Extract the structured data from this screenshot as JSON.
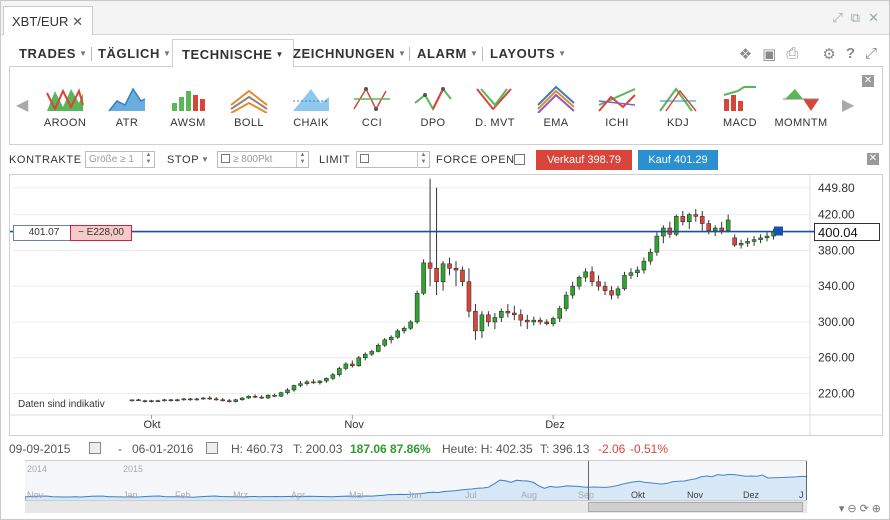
{
  "tab": {
    "title": "XBT/EUR",
    "close": "✕"
  },
  "menu": [
    {
      "label": "TRADES"
    },
    {
      "label": "TÄGLICH"
    },
    {
      "label": "TECHNISCHE"
    },
    {
      "label": "ZEICHNUNGEN"
    },
    {
      "label": "ALARM"
    },
    {
      "label": "LAYOUTS"
    }
  ],
  "indicators": [
    {
      "label": "AROON",
      "icon": "aroon-icon"
    },
    {
      "label": "ATR",
      "icon": "atr-icon"
    },
    {
      "label": "AWSM",
      "icon": "awsm-icon"
    },
    {
      "label": "BOLL",
      "icon": "boll-icon"
    },
    {
      "label": "CHAIK",
      "icon": "chaik-icon"
    },
    {
      "label": "CCI",
      "icon": "cci-icon"
    },
    {
      "label": "DPO",
      "icon": "dpo-icon"
    },
    {
      "label": "D. MVT",
      "icon": "dmvt-icon"
    },
    {
      "label": "EMA",
      "icon": "ema-icon"
    },
    {
      "label": "ICHI",
      "icon": "ichi-icon"
    },
    {
      "label": "KDJ",
      "icon": "kdj-icon"
    },
    {
      "label": "MACD",
      "icon": "macd-icon"
    },
    {
      "label": "MOMNTM",
      "icon": "momntm-icon"
    }
  ],
  "order": {
    "kontrakte_label": "KONTRAKTE",
    "kontrakte_placeholder": "Größe ≥ 1",
    "stop_label": "STOP",
    "stop_placeholder": "≥ 800Pkt",
    "limit_label": "LIMIT",
    "force_open_label": "FORCE OPEN",
    "sell_label": "Verkauf 398.79",
    "buy_label": "Kauf 401.29"
  },
  "chart": {
    "position_price": "401.07",
    "position_pnl": "− E228,00",
    "current_price": "400.04",
    "indicative_note": "Daten sind indikativ"
  },
  "colors": {
    "up": "#2fa52f",
    "down": "#d9453b",
    "position_line": "#1f4f9a",
    "sell": "#d9453b",
    "buy": "#2c8fd0"
  },
  "stats": {
    "date_from": "09-09-2015",
    "dash": "-",
    "date_to": "06-01-2016",
    "high": "H: 460.73",
    "low": "T: 200.03",
    "change": "187.06",
    "change_pct": "87.86%",
    "today_high": "Heute: H: 402.35",
    "today_low": "T: 396.13",
    "today_change": "-2.06",
    "today_change_pct": "-0.51%"
  },
  "navigator": {
    "years": [
      "2014",
      "2015"
    ],
    "months": [
      "Nov",
      "Jan",
      "Feb",
      "Mrz",
      "Apr",
      "Mai",
      "Jun",
      "Jul",
      "Aug",
      "Sep",
      "Okt",
      "Nov",
      "Dez",
      "J"
    ]
  },
  "chart_data": {
    "type": "candlestick",
    "title": "",
    "xlabel": "",
    "ylabel": "",
    "x_ticks": [
      "Okt",
      "Nov",
      "Dez"
    ],
    "y_ticks": [
      449.8,
      420.0,
      380.0,
      340.0,
      300.0,
      260.0,
      220.0
    ],
    "ylim": [
      196,
      462
    ],
    "current_price": 400.04,
    "position_price": 401.07,
    "candles": [
      [
        213,
        213,
        211,
        212
      ],
      [
        213,
        214,
        212,
        213
      ],
      [
        212,
        213,
        210,
        211
      ],
      [
        211,
        213,
        210,
        212
      ],
      [
        212,
        213,
        211,
        212
      ],
      [
        212,
        214,
        211,
        213
      ],
      [
        213,
        214,
        211,
        212
      ],
      [
        212,
        214,
        211,
        213
      ],
      [
        213,
        215,
        212,
        214
      ],
      [
        214,
        215,
        212,
        213
      ],
      [
        213,
        215,
        212,
        214
      ],
      [
        214,
        216,
        213,
        215
      ],
      [
        215,
        217,
        213,
        214
      ],
      [
        214,
        216,
        212,
        213
      ],
      [
        213,
        215,
        211,
        212
      ],
      [
        212,
        214,
        210,
        211
      ],
      [
        211,
        214,
        210,
        213
      ],
      [
        213,
        216,
        212,
        215
      ],
      [
        215,
        218,
        214,
        217
      ],
      [
        217,
        219,
        215,
        216
      ],
      [
        216,
        218,
        214,
        215
      ],
      [
        215,
        219,
        214,
        218
      ],
      [
        218,
        220,
        216,
        217
      ],
      [
        217,
        222,
        216,
        221
      ],
      [
        221,
        226,
        219,
        224
      ],
      [
        224,
        230,
        222,
        229
      ],
      [
        229,
        234,
        227,
        231
      ],
      [
        231,
        235,
        229,
        233
      ],
      [
        233,
        236,
        231,
        232
      ],
      [
        232,
        235,
        230,
        234
      ],
      [
        234,
        238,
        232,
        237
      ],
      [
        237,
        243,
        235,
        241
      ],
      [
        241,
        250,
        239,
        248
      ],
      [
        248,
        255,
        246,
        253
      ],
      [
        253,
        257,
        249,
        251
      ],
      [
        251,
        262,
        250,
        260
      ],
      [
        260,
        266,
        257,
        264
      ],
      [
        264,
        269,
        262,
        267
      ],
      [
        267,
        276,
        266,
        274
      ],
      [
        274,
        282,
        272,
        280
      ],
      [
        280,
        285,
        276,
        283
      ],
      [
        283,
        292,
        281,
        290
      ],
      [
        290,
        295,
        287,
        293
      ],
      [
        293,
        302,
        291,
        300
      ],
      [
        300,
        335,
        298,
        332
      ],
      [
        332,
        370,
        330,
        366
      ],
      [
        366,
        460,
        340,
        360
      ],
      [
        360,
        450,
        330,
        345
      ],
      [
        345,
        368,
        335,
        365
      ],
      [
        365,
        372,
        352,
        360
      ],
      [
        360,
        368,
        340,
        358
      ],
      [
        358,
        362,
        340,
        345
      ],
      [
        345,
        360,
        305,
        312
      ],
      [
        312,
        320,
        280,
        290
      ],
      [
        290,
        312,
        282,
        308
      ],
      [
        308,
        312,
        295,
        300
      ],
      [
        300,
        310,
        292,
        305
      ],
      [
        305,
        315,
        300,
        312
      ],
      [
        312,
        320,
        305,
        310
      ],
      [
        310,
        318,
        302,
        308
      ],
      [
        308,
        314,
        295,
        302
      ],
      [
        302,
        308,
        292,
        300
      ],
      [
        300,
        306,
        296,
        302
      ],
      [
        302,
        305,
        297,
        300
      ],
      [
        300,
        303,
        296,
        298
      ],
      [
        298,
        306,
        295,
        304
      ],
      [
        304,
        318,
        300,
        315
      ],
      [
        315,
        334,
        312,
        330
      ],
      [
        330,
        345,
        326,
        340
      ],
      [
        340,
        352,
        336,
        350
      ],
      [
        350,
        360,
        345,
        356
      ],
      [
        356,
        362,
        340,
        345
      ],
      [
        345,
        352,
        335,
        340
      ],
      [
        340,
        345,
        330,
        335
      ],
      [
        335,
        340,
        325,
        330
      ],
      [
        330,
        340,
        326,
        337
      ],
      [
        337,
        356,
        335,
        352
      ],
      [
        352,
        360,
        348,
        355
      ],
      [
        355,
        362,
        350,
        358
      ],
      [
        358,
        372,
        354,
        368
      ],
      [
        368,
        382,
        364,
        378
      ],
      [
        378,
        400,
        374,
        396
      ],
      [
        396,
        408,
        388,
        405
      ],
      [
        405,
        412,
        394,
        398
      ],
      [
        398,
        420,
        396,
        418
      ],
      [
        418,
        424,
        408,
        412
      ],
      [
        412,
        422,
        404,
        420
      ],
      [
        420,
        426,
        412,
        418
      ],
      [
        418,
        424,
        402,
        410
      ],
      [
        410,
        414,
        398,
        402
      ],
      [
        402,
        408,
        396,
        405
      ],
      [
        405,
        412,
        398,
        402
      ],
      [
        402,
        420,
        400,
        414
      ],
      [
        394,
        398,
        384,
        386
      ],
      [
        386,
        392,
        382,
        388
      ],
      [
        388,
        394,
        384,
        390
      ],
      [
        390,
        396,
        385,
        392
      ],
      [
        392,
        398,
        388,
        394
      ],
      [
        394,
        400,
        390,
        396
      ],
      [
        396,
        404,
        392,
        401
      ],
      [
        401,
        403,
        399,
        400
      ]
    ]
  }
}
